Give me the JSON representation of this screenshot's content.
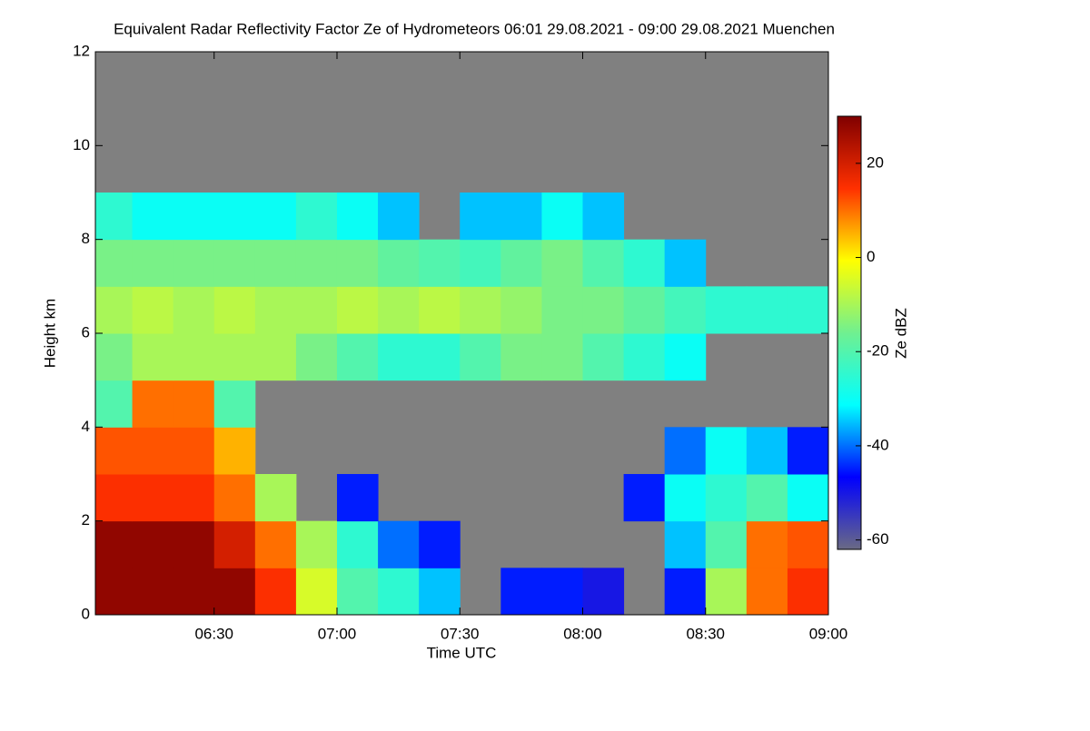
{
  "chart_data": {
    "type": "heatmap",
    "title": "Equivalent Radar Reflectivity Factor Ze of Hydrometeors   06:01 29.08.2021 - 09:00 29.08.2021 Muenchen",
    "xlabel": "Time UTC",
    "ylabel": "Height km",
    "colorbar_label": "Ze dBZ",
    "xlim": [
      1,
      180
    ],
    "xticks": [
      {
        "value": 30,
        "label": "06:30"
      },
      {
        "value": 60,
        "label": "07:00"
      },
      {
        "value": 90,
        "label": "07:30"
      },
      {
        "value": 120,
        "label": "08:00"
      },
      {
        "value": 150,
        "label": "08:30"
      },
      {
        "value": 180,
        "label": "09:00"
      }
    ],
    "ylim": [
      0,
      12
    ],
    "yticks": [
      0,
      2,
      4,
      6,
      8,
      10,
      12
    ],
    "clim": [
      -62,
      30
    ],
    "cticks": [
      20,
      0,
      -20,
      -40,
      -60
    ],
    "colors": [
      "#6a6a84",
      "#0000ff",
      "#00ffff",
      "#70f090",
      "#ffff00",
      "#ff3000",
      "#800000"
    ],
    "nodata_color": "#808080",
    "x": [
      1,
      10,
      20,
      30,
      40,
      50,
      60,
      70,
      80,
      90,
      100,
      110,
      120,
      130,
      140,
      150,
      160,
      170,
      180
    ],
    "y": [
      0,
      1,
      2,
      3,
      4,
      5,
      6,
      7,
      8,
      9
    ],
    "z": [
      [
        28,
        28,
        28,
        28,
        15,
        -5,
        -20,
        -25,
        -35,
        null,
        -45,
        -45,
        -50,
        null,
        -45,
        -10,
        10,
        15
      ],
      [
        28,
        28,
        28,
        20,
        10,
        -10,
        -25,
        -40,
        -45,
        null,
        null,
        null,
        null,
        null,
        -35,
        -20,
        10,
        12
      ],
      [
        15,
        15,
        15,
        10,
        -10,
        null,
        -45,
        null,
        null,
        null,
        null,
        null,
        null,
        -45,
        -30,
        -25,
        -20,
        -30
      ],
      [
        12,
        12,
        12,
        5,
        null,
        null,
        null,
        null,
        null,
        null,
        null,
        null,
        null,
        null,
        -40,
        -30,
        -35,
        -45
      ],
      [
        -20,
        10,
        10,
        -20,
        null,
        null,
        null,
        null,
        null,
        null,
        null,
        null,
        null,
        null,
        null,
        null,
        null,
        null
      ],
      [
        -15,
        -10,
        -10,
        -10,
        -10,
        -15,
        -20,
        -25,
        -25,
        -20,
        -15,
        -15,
        -20,
        -25,
        -30,
        null,
        null,
        null
      ],
      [
        -10,
        -8,
        -10,
        -8,
        -10,
        -10,
        -8,
        -10,
        -8,
        -10,
        -12,
        -15,
        -15,
        -18,
        -22,
        -25,
        -25,
        -25
      ],
      [
        -15,
        -15,
        -15,
        -15,
        -15,
        -15,
        -15,
        -18,
        -20,
        -22,
        -18,
        -15,
        -20,
        -25,
        -35,
        null,
        null,
        null
      ],
      [
        -25,
        -30,
        -30,
        -30,
        -30,
        -25,
        -30,
        -35,
        null,
        -35,
        -35,
        -30,
        -35,
        null,
        null,
        null,
        null,
        null
      ]
    ]
  }
}
